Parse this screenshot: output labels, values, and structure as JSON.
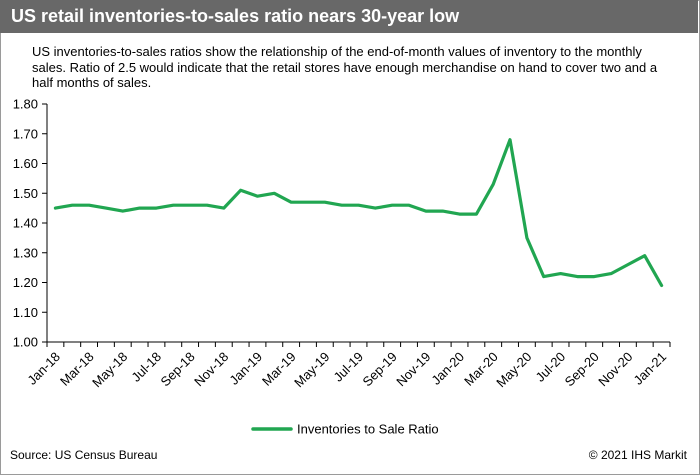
{
  "header": {
    "title": "US retail inventories-to-sales ratio nears 30-year low",
    "subtitle": "US inventories-to-sales ratios show the relationship of the end-of-month values of inventory to the monthly sales. Ratio of 2.5 would indicate that the retail stores have enough merchandise on hand to cover two and a half months of sales."
  },
  "footer": {
    "source": "Source: US Census Bureau",
    "copyright": "© 2021 IHS Markit"
  },
  "colors": {
    "title_bar": "#686868",
    "series_line": "#21a651"
  },
  "chart_data": {
    "type": "line",
    "ylim": [
      1.0,
      1.8
    ],
    "yticks": [
      "1.00",
      "1.10",
      "1.20",
      "1.30",
      "1.40",
      "1.50",
      "1.60",
      "1.70",
      "1.80"
    ],
    "grid": false,
    "legend_position": "bottom",
    "x": [
      "Jan-18",
      "Feb-18",
      "Mar-18",
      "Apr-18",
      "May-18",
      "Jun-18",
      "Jul-18",
      "Aug-18",
      "Sep-18",
      "Oct-18",
      "Nov-18",
      "Dec-18",
      "Jan-19",
      "Feb-19",
      "Mar-19",
      "Apr-19",
      "May-19",
      "Jun-19",
      "Jul-19",
      "Aug-19",
      "Sep-19",
      "Oct-19",
      "Nov-19",
      "Dec-19",
      "Jan-20",
      "Feb-20",
      "Mar-20",
      "Apr-20",
      "May-20",
      "Jun-20",
      "Jul-20",
      "Aug-20",
      "Sep-20",
      "Oct-20",
      "Nov-20",
      "Dec-20",
      "Jan-21"
    ],
    "xtick_labels": [
      "Jan-18",
      "Mar-18",
      "May-18",
      "Jul-18",
      "Sep-18",
      "Nov-18",
      "Jan-19",
      "Mar-19",
      "May-19",
      "Jul-19",
      "Sep-19",
      "Nov-19",
      "Jan-20",
      "Mar-20",
      "May-20",
      "Jul-20",
      "Sep-20",
      "Nov-20",
      "Jan-21"
    ],
    "series": [
      {
        "name": "Inventories to Sale Ratio",
        "values": [
          1.45,
          1.46,
          1.46,
          1.45,
          1.44,
          1.45,
          1.45,
          1.46,
          1.46,
          1.46,
          1.45,
          1.51,
          1.49,
          1.5,
          1.47,
          1.47,
          1.47,
          1.46,
          1.46,
          1.45,
          1.46,
          1.46,
          1.44,
          1.44,
          1.43,
          1.43,
          1.53,
          1.68,
          1.35,
          1.22,
          1.23,
          1.22,
          1.22,
          1.23,
          1.26,
          1.29,
          1.19
        ]
      }
    ]
  }
}
